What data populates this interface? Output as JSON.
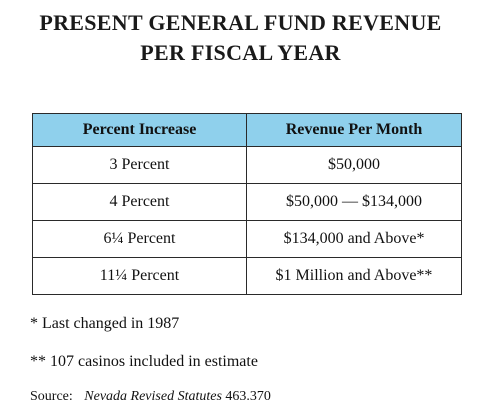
{
  "title": {
    "line1": "PRESENT GENERAL FUND REVENUE",
    "line2": "PER FISCAL YEAR"
  },
  "table": {
    "headers": [
      "Percent Increase",
      "Revenue Per Month"
    ],
    "rows": [
      [
        "3 Percent",
        "$50,000"
      ],
      [
        "4 Percent",
        "$50,000 — $134,000"
      ],
      [
        "6¼ Percent",
        "$134,000 and Above*"
      ],
      [
        "11¼ Percent",
        "$1 Million and Above**"
      ]
    ],
    "header_color": "#8fd0ec"
  },
  "notes": {
    "note1": "* Last changed in 1987",
    "note2": "** 107 casinos included in estimate"
  },
  "source": {
    "label": "Source:",
    "statute": "Nevada Revised Statutes",
    "section": "463.370"
  }
}
